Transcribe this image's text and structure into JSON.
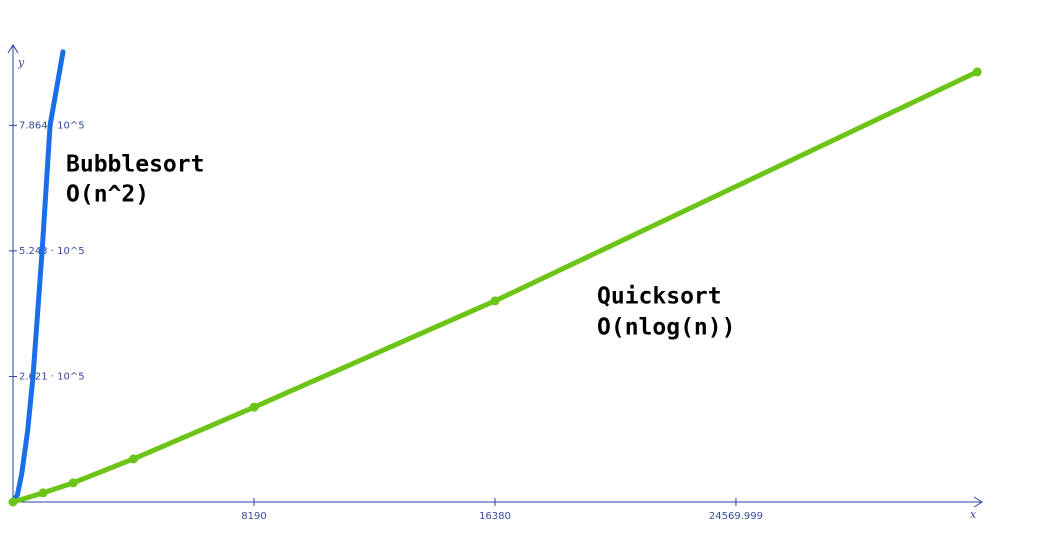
{
  "chart_data": {
    "type": "line",
    "xlabel": "x",
    "ylabel": "y",
    "annotations": [
      "Bubblesort",
      "O(n^2)",
      "Quicksort",
      "O(nlog(n))"
    ],
    "series": [
      {
        "name": "Bubblesort",
        "color": "#1a6fe8",
        "x": [
          0,
          150,
          300,
          500,
          680,
          990,
          1260,
          1700
        ],
        "values": [
          0,
          15000,
          60000,
          150000,
          262144,
          524288,
          786432,
          940000
        ]
      },
      {
        "name": "Quicksort",
        "color": "#6cc417",
        "x": [
          0,
          1024,
          2048,
          4096,
          8192,
          16384,
          32768
        ],
        "values": [
          0,
          19000,
          40000,
          90000,
          198000,
          420000,
          898000
        ],
        "markers": true
      }
    ],
    "xlim": [
      0,
      33000
    ],
    "ylim": [
      0,
      950000
    ],
    "xticks": [
      8190,
      16380,
      24569.999
    ],
    "yticks": [
      {
        "value": 262144,
        "label": "2.621 · 10^5"
      },
      {
        "value": 524288,
        "label": "5.243 · 10^5"
      },
      {
        "value": 786432,
        "label": "7.864 · 10^5"
      }
    ],
    "grid": false
  }
}
